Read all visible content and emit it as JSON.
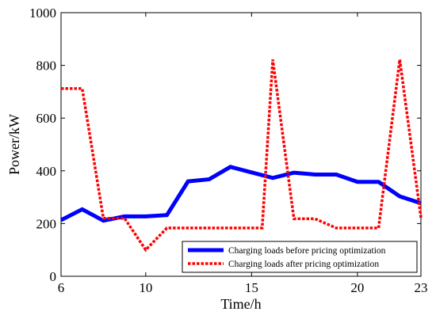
{
  "chart_data": {
    "type": "line",
    "title": "",
    "xlabel": "Time/h",
    "ylabel": "Power/kW",
    "xlim": [
      6,
      23
    ],
    "ylim": [
      0,
      1000
    ],
    "xticks": [
      "6",
      "10",
      "15",
      "20",
      "23"
    ],
    "yticks": [
      "0",
      "200",
      "400",
      "600",
      "800",
      "1000"
    ],
    "grid": false,
    "legend_position": "bottom-right",
    "series": [
      {
        "name": "Charging loads before pricing optimization",
        "color": "#0000ff",
        "style": "solid",
        "x": [
          6,
          7,
          8,
          9,
          10,
          11,
          12,
          13,
          14,
          15,
          16,
          17,
          18,
          19,
          20,
          21,
          22,
          23
        ],
        "y": [
          213,
          254,
          211,
          227,
          227,
          232,
          360,
          368,
          415,
          394,
          373,
          393,
          386,
          386,
          358,
          358,
          303,
          277
        ]
      },
      {
        "name": "Charging loads after pricing optimization",
        "color": "#ff0000",
        "style": "dashed",
        "x": [
          6,
          7,
          8,
          9,
          10,
          11,
          12,
          13,
          14,
          15,
          15.5,
          16,
          17,
          18,
          19,
          20,
          21,
          22,
          23
        ],
        "y": [
          712,
          712,
          220,
          220,
          100,
          183,
          183,
          183,
          183,
          183,
          183,
          822,
          218,
          218,
          183,
          183,
          183,
          822,
          222
        ]
      }
    ]
  }
}
